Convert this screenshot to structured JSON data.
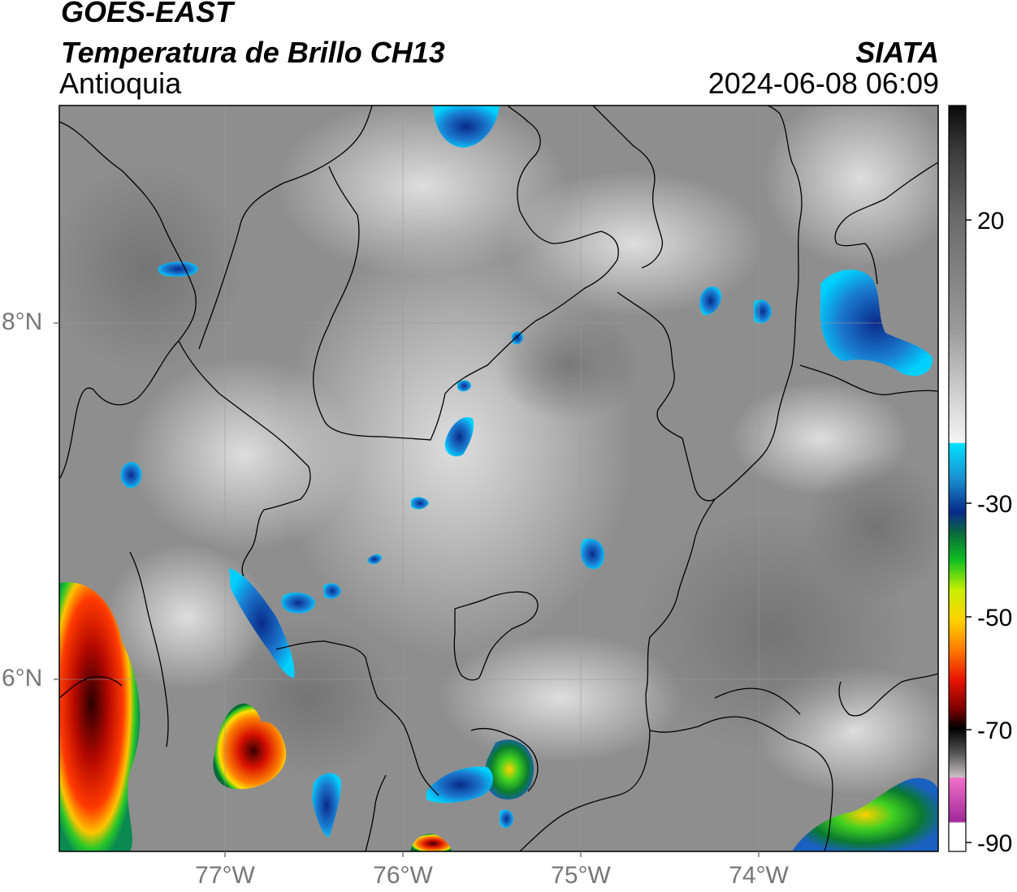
{
  "header": {
    "title_line1": "GOES-EAST",
    "title_line2": "Temperatura de Brillo CH13",
    "region": "Antioquia",
    "source": "SIATA",
    "datetime": "2024-06-08 06:09"
  },
  "map": {
    "lat_ticks": [
      "8°N",
      "6°N"
    ],
    "lon_ticks": [
      "77°W",
      "76°W",
      "75°W",
      "74°W"
    ]
  },
  "colorbar": {
    "tick_labels": [
      "20",
      "-30",
      "-50",
      "-70",
      "-90"
    ],
    "colors": {
      "warm_grey_top": "#1a1a1a",
      "warm_grey_mid": "#8c8c8c",
      "light": "#f2f2f2",
      "cyan": "#00d8ff",
      "blue": "#0a2fa0",
      "green": "#1bb01b",
      "yellow": "#ffe000",
      "orange": "#ff8c00",
      "red": "#e01000",
      "dark_red": "#6a0000",
      "black": "#000000",
      "pink": "#e64fc0",
      "purple": "#9a2090"
    }
  }
}
